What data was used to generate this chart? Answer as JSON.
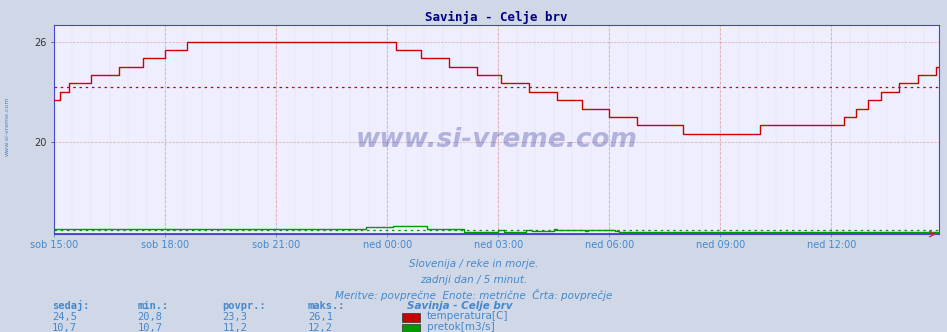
{
  "title": "Savinja - Celje brv",
  "title_color": "#000080",
  "bg_color": "#d0d8e8",
  "plot_bg_color": "#eeeeff",
  "grid_color_major": "#c0c0c0",
  "grid_color_minor": "#e8e8e8",
  "x_labels": [
    "sob 15:00",
    "sob 18:00",
    "sob 21:00",
    "ned 00:00",
    "ned 03:00",
    "ned 06:00",
    "ned 09:00",
    "ned 12:00"
  ],
  "x_ticks_pos": [
    0,
    36,
    72,
    108,
    144,
    180,
    216,
    252
  ],
  "n_points": 288,
  "y_min": 14.5,
  "y_max": 27.0,
  "y_ticks": [
    20,
    26
  ],
  "temp_avg": 23.3,
  "temp_color": "#cc0000",
  "flow_color": "#009900",
  "flow_avg": 11.2,
  "flow_display_min": 14.6,
  "flow_display_max": 15.0,
  "flow_real_min": 10.7,
  "flow_real_max": 12.2,
  "axis_color": "#4444cc",
  "text_color": "#4488cc",
  "subtitle1": "Slovenija / reke in morje.",
  "subtitle2": "zadnji dan / 5 minut.",
  "subtitle3": "Meritve: povprečne  Enote: metrične  Črta: povprečje",
  "legend_title": "Savinja - Celje brv",
  "legend_temp_label": "temperatura[C]",
  "legend_flow_label": "pretok[m3/s]",
  "stat_headers": [
    "sedaj:",
    "min.:",
    "povpr.:",
    "maks.:"
  ],
  "temp_stats": [
    "24,5",
    "20,8",
    "23,3",
    "26,1"
  ],
  "flow_stats": [
    "10,7",
    "10,7",
    "11,2",
    "12,2"
  ],
  "watermark": "www.si-vreme.com",
  "left_label": "www.si-vreme.com"
}
